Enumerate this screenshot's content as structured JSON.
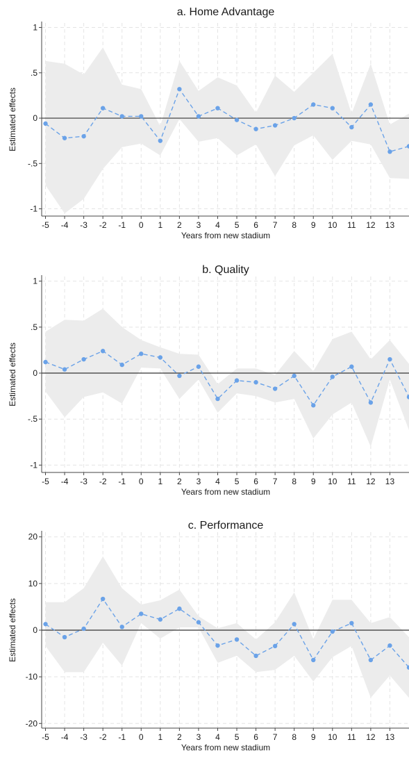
{
  "chart_data": [
    {
      "type": "line",
      "title": "a. Home Advantage",
      "xlabel": "Years from new stadium",
      "ylabel": "Estimated effects",
      "x": [
        -5,
        -4,
        -3,
        -2,
        -1,
        0,
        1,
        2,
        3,
        4,
        5,
        6,
        7,
        8,
        9,
        10,
        11,
        12,
        13,
        14
      ],
      "x_ticks": [
        -5,
        -4,
        -3,
        -2,
        -1,
        0,
        1,
        2,
        3,
        4,
        5,
        6,
        7,
        8,
        9,
        10,
        11,
        12,
        13
      ],
      "xlim": [
        -5.2,
        14
      ],
      "ylim": [
        -1.08,
        1.05
      ],
      "y_ticks": [
        -1,
        -0.5,
        0,
        0.5,
        1
      ],
      "y_tick_labels": [
        "-1",
        "-.5",
        "0",
        ".5",
        "1"
      ],
      "series": [
        {
          "values": [
            -0.06,
            -0.22,
            -0.2,
            0.11,
            0.02,
            0.02,
            -0.25,
            0.32,
            0.02,
            0.11,
            -0.02,
            -0.12,
            -0.08,
            0.0,
            0.15,
            0.11,
            -0.1,
            0.15,
            -0.37,
            -0.31
          ],
          "ci_low": [
            -0.74,
            -1.05,
            -0.89,
            -0.56,
            -0.32,
            -0.28,
            -0.41,
            -0.01,
            -0.26,
            -0.22,
            -0.41,
            -0.29,
            -0.64,
            -0.3,
            -0.19,
            -0.46,
            -0.25,
            -0.29,
            -0.66,
            -0.67
          ],
          "ci_high": [
            0.63,
            0.6,
            0.48,
            0.78,
            0.37,
            0.32,
            -0.09,
            0.63,
            0.3,
            0.45,
            0.36,
            0.06,
            0.47,
            0.29,
            0.5,
            0.71,
            0.05,
            0.6,
            -0.07,
            0.05
          ]
        }
      ],
      "grid": true
    },
    {
      "type": "line",
      "title": "b. Quality",
      "xlabel": "Years from new stadium",
      "ylabel": "Estimated effects",
      "x": [
        -5,
        -4,
        -3,
        -2,
        -1,
        0,
        1,
        2,
        3,
        4,
        5,
        6,
        7,
        8,
        9,
        10,
        11,
        12,
        13,
        14
      ],
      "x_ticks": [
        -5,
        -4,
        -3,
        -2,
        -1,
        0,
        1,
        2,
        3,
        4,
        5,
        6,
        7,
        8,
        9,
        10,
        11,
        12,
        13
      ],
      "xlim": [
        -5.2,
        14
      ],
      "ylim": [
        -1.08,
        1.05
      ],
      "y_ticks": [
        -1,
        -0.5,
        0,
        0.5,
        1
      ],
      "y_tick_labels": [
        "-1",
        "-.5",
        "0",
        ".5",
        "1"
      ],
      "series": [
        {
          "values": [
            0.12,
            0.04,
            0.15,
            0.24,
            0.09,
            0.21,
            0.17,
            -0.03,
            0.07,
            -0.28,
            -0.08,
            -0.1,
            -0.17,
            -0.03,
            -0.35,
            -0.04,
            0.07,
            -0.32,
            0.15,
            -0.26
          ],
          "ci_low": [
            -0.2,
            -0.48,
            -0.26,
            -0.21,
            -0.33,
            0.06,
            0.05,
            -0.28,
            -0.07,
            -0.43,
            -0.22,
            -0.25,
            -0.32,
            -0.28,
            -0.71,
            -0.45,
            -0.32,
            -0.8,
            -0.07,
            -0.62
          ],
          "ci_high": [
            0.45,
            0.58,
            0.57,
            0.7,
            0.5,
            0.36,
            0.28,
            0.21,
            0.2,
            -0.12,
            0.05,
            0.05,
            -0.02,
            0.24,
            0.02,
            0.37,
            0.45,
            0.15,
            0.36,
            0.1
          ]
        }
      ],
      "grid": true
    },
    {
      "type": "line",
      "title": "c. Performance",
      "xlabel": "Years from new stadium",
      "ylabel": "Estimated effects",
      "x": [
        -5,
        -4,
        -3,
        -2,
        -1,
        0,
        1,
        2,
        3,
        4,
        5,
        6,
        7,
        8,
        9,
        10,
        11,
        12,
        13,
        14
      ],
      "x_ticks": [
        -5,
        -4,
        -3,
        -2,
        -1,
        0,
        1,
        2,
        3,
        4,
        5,
        6,
        7,
        8,
        9,
        10,
        11,
        12,
        13
      ],
      "xlim": [
        -5.2,
        14
      ],
      "ylim": [
        -21,
        21
      ],
      "y_ticks": [
        -20,
        -10,
        0,
        10,
        20
      ],
      "y_tick_labels": [
        "-20",
        "-10",
        "0",
        "10",
        "20"
      ],
      "series": [
        {
          "values": [
            1.3,
            -1.5,
            0.3,
            6.7,
            0.7,
            3.5,
            2.3,
            4.6,
            1.7,
            -3.3,
            -2.0,
            -5.5,
            -3.4,
            1.3,
            -6.4,
            -0.3,
            1.5,
            -6.4,
            -3.3,
            -8.0
          ],
          "ci_low": [
            -3.4,
            -9.0,
            -9.0,
            -2.7,
            -7.6,
            1.5,
            -1.8,
            0.6,
            0.6,
            -7.0,
            -5.5,
            -9.0,
            -8.5,
            -5.5,
            -11.0,
            -5.8,
            -3.4,
            -14.5,
            -9.7,
            -14.5
          ],
          "ci_high": [
            6.0,
            6.0,
            9.0,
            15.8,
            9.0,
            5.5,
            6.4,
            8.7,
            3.0,
            0.4,
            1.5,
            -2.0,
            1.7,
            8.1,
            -1.9,
            6.5,
            6.5,
            1.5,
            2.8,
            -1.5
          ]
        }
      ],
      "grid": true
    }
  ],
  "colors": {
    "marker": "#6aa2e8",
    "line": "#6aa2e8",
    "ci_band": "#ececec",
    "zero_line": "#333333",
    "grid": "#e4e4e4"
  }
}
